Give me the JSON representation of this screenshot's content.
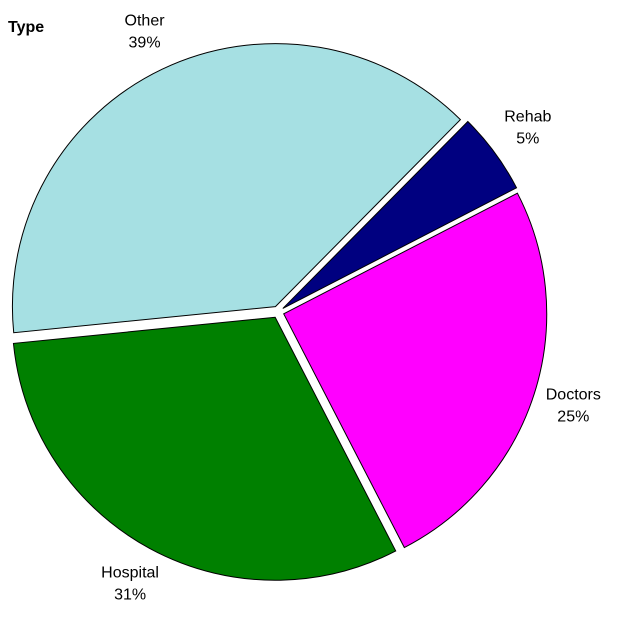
{
  "chart_data": {
    "type": "pie",
    "subtitle": "Type",
    "categories": [
      "Rehab",
      "Doctors",
      "Hospital",
      "Other"
    ],
    "values": [
      5,
      25,
      31,
      39
    ],
    "value_labels": [
      "5%",
      "25%",
      "31%",
      "39%"
    ],
    "colors": [
      "#000080",
      "#ff00ff",
      "#008000",
      "#a6e0e3"
    ]
  }
}
